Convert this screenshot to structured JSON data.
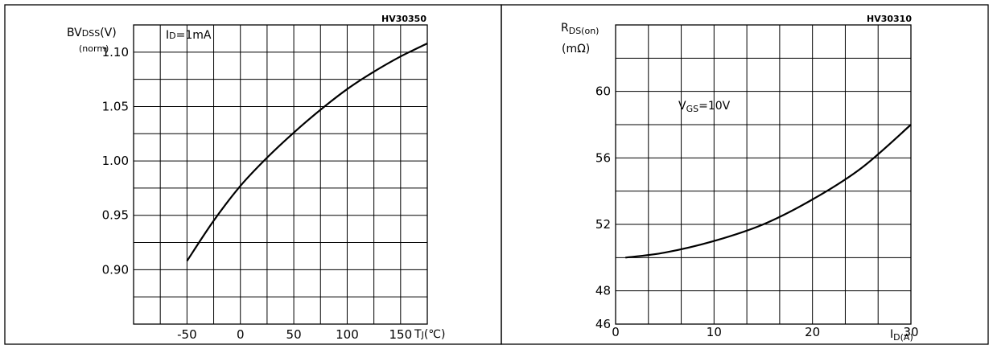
{
  "chart_data": [
    {
      "type": "line",
      "code": "HV30350",
      "ylabel_main": "BV",
      "ylabel_sub": "DSS",
      "ylabel_unit": "(V)",
      "ylabel_norm": "(norm)",
      "annotation_main": "I",
      "annotation_sub": "D",
      "annotation_rest": "=1mA",
      "xlabel_main": "T",
      "xlabel_sub": "J",
      "xlabel_unit": "(℃)",
      "xlim": [
        -100,
        175
      ],
      "ylim": [
        0.85,
        1.125
      ],
      "x_ticks": [
        -50,
        0,
        50,
        100,
        150
      ],
      "x_tick_labels": [
        "-50",
        "0",
        "50",
        "100",
        "150"
      ],
      "y_ticks": [
        0.9,
        0.95,
        1.0,
        1.05,
        1.1
      ],
      "y_tick_labels": [
        "0.90",
        "0.95",
        "1.00",
        "1.05",
        "1.10"
      ],
      "grid": true,
      "series": [
        {
          "x": [
            -50,
            -25,
            0,
            25,
            50,
            75,
            100,
            125,
            150,
            175
          ],
          "y": [
            0.908,
            0.945,
            0.977,
            1.003,
            1.026,
            1.047,
            1.066,
            1.082,
            1.096,
            1.108
          ]
        }
      ]
    },
    {
      "type": "line",
      "code": "HV30310",
      "ylabel_main": "R",
      "ylabel_sub": "DS(on)",
      "ylabel_unit": "(mΩ)",
      "annotation_main": "V",
      "annotation_sub": "GS",
      "annotation_rest": "=10V",
      "xlabel_main": "I",
      "xlabel_sub": "D",
      "xlabel_unit": "(A)",
      "xlim": [
        0,
        30
      ],
      "ylim": [
        46,
        64
      ],
      "x_ticks": [
        0,
        10,
        20,
        30
      ],
      "x_tick_labels": [
        "0",
        "10",
        "20",
        "30"
      ],
      "y_ticks": [
        46,
        48,
        52,
        56,
        60
      ],
      "y_tick_labels": [
        "46",
        "48",
        "52",
        "56",
        "60"
      ],
      "grid": true,
      "series": [
        {
          "x": [
            1,
            5,
            10,
            15,
            20,
            25,
            30
          ],
          "y": [
            50.0,
            50.3,
            51.0,
            52.0,
            53.5,
            55.4,
            58.0
          ]
        }
      ]
    }
  ]
}
